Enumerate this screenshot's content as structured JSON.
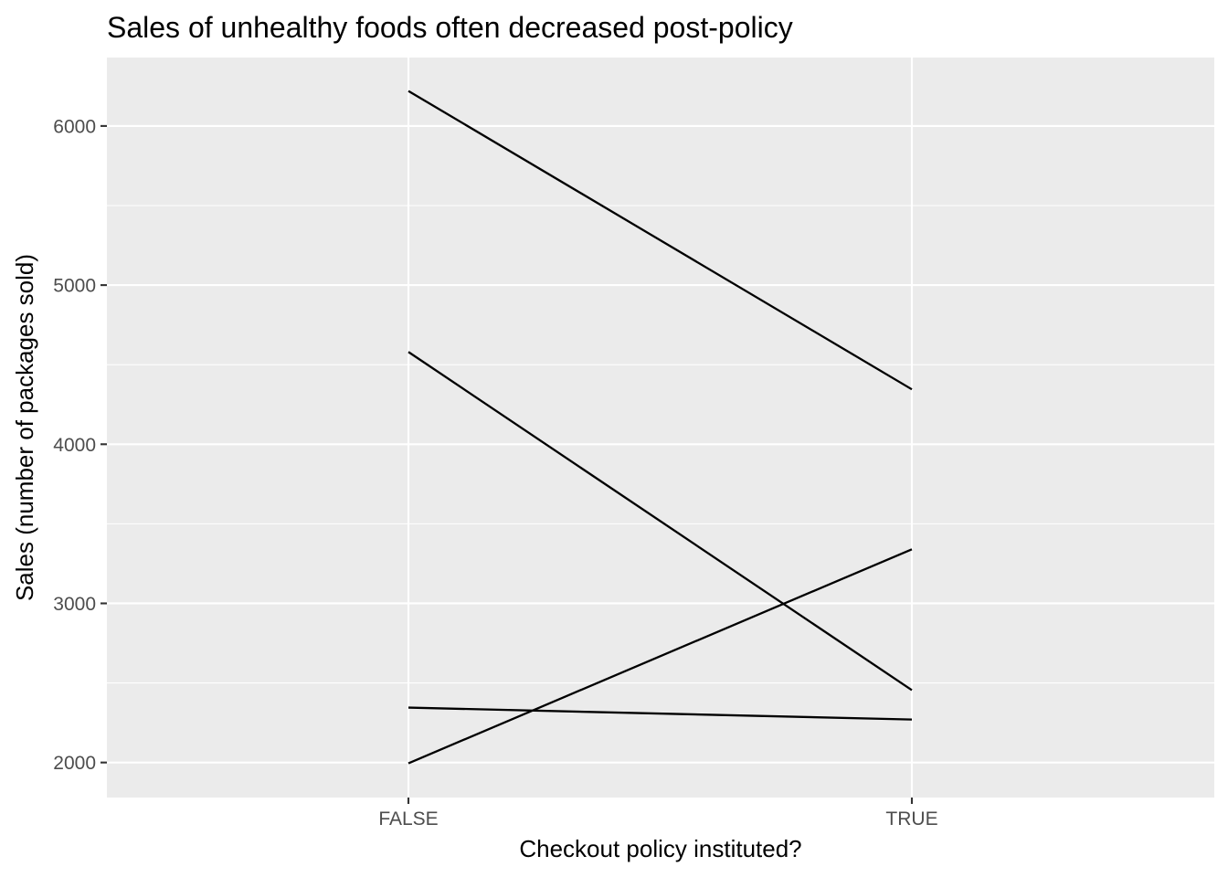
{
  "chart_data": {
    "type": "line",
    "title": "Sales of unhealthy foods often decreased post-policy",
    "xlabel": "Checkout policy instituted?",
    "ylabel": "Sales (number of packages sold)",
    "categories": [
      "FALSE",
      "TRUE"
    ],
    "ylim": [
      1780,
      6430
    ],
    "yticks": [
      2000,
      3000,
      4000,
      5000,
      6000
    ],
    "grid": true,
    "legend": "none",
    "line_color": "#000000",
    "panel_color": "#ebebeb",
    "series": [
      {
        "values": [
          6220,
          4345
        ]
      },
      {
        "values": [
          4580,
          2455
        ]
      },
      {
        "values": [
          2345,
          2270
        ]
      },
      {
        "values": [
          1995,
          3340
        ]
      }
    ]
  }
}
